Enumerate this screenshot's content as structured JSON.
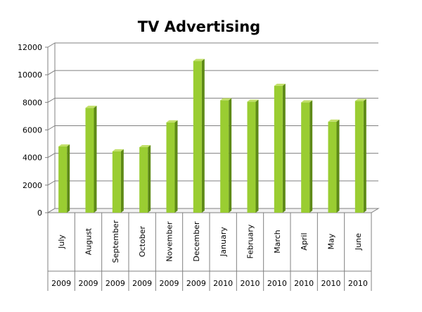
{
  "chart_data": {
    "type": "bar",
    "title": "TV Advertising",
    "categories": [
      "July",
      "August",
      "September",
      "October",
      "November",
      "December",
      "January",
      "February",
      "March",
      "April",
      "May",
      "June"
    ],
    "years": [
      "2009",
      "2009",
      "2009",
      "2009",
      "2009",
      "2009",
      "2010",
      "2010",
      "2010",
      "2010",
      "2010",
      "2010"
    ],
    "values": [
      4800,
      7600,
      4450,
      4750,
      6550,
      11000,
      8150,
      8050,
      9200,
      8000,
      6600,
      8100
    ],
    "ylim": [
      0,
      12000
    ],
    "yticks": [
      0,
      2000,
      4000,
      6000,
      8000,
      10000,
      12000
    ],
    "grid": true,
    "legend": "none",
    "colors": {
      "bar_front": "#9ACD32",
      "bar_side": "#5E8A17",
      "bar_top": "#C2E06A",
      "grid": "#808080"
    }
  }
}
